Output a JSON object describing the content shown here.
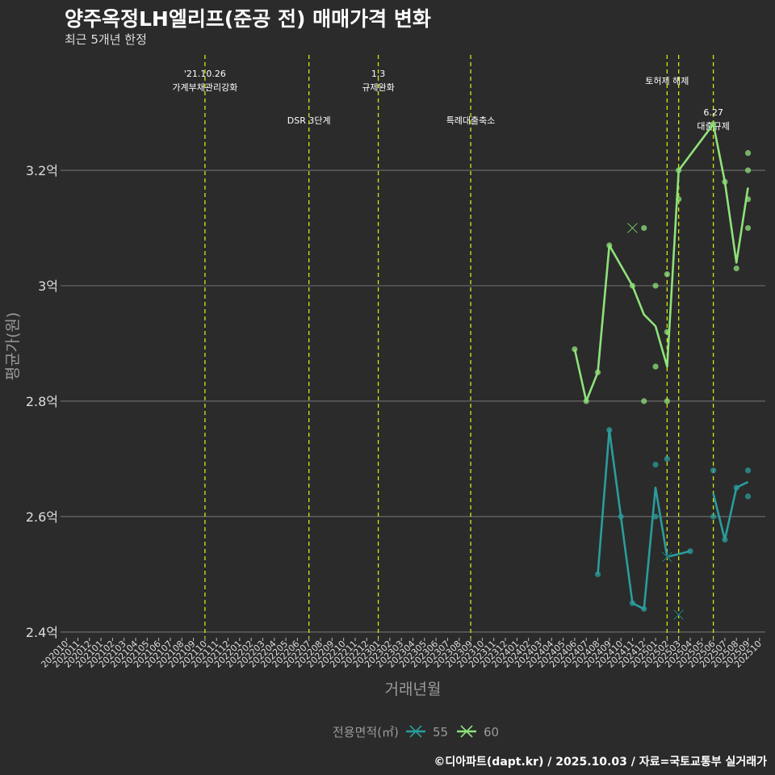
{
  "header": {
    "title": "양주옥정LH엘리프(준공 전) 매매가격 변화",
    "subtitle": "최근 5개년 한정"
  },
  "footer": {
    "caption": "©디아파트(dapt.kr) / 2025.10.03 / 자료=국토교통부 실거래가"
  },
  "colors": {
    "background": "#2b2b2b",
    "grid": "#6a6a6a",
    "event_line": "#d4e41a",
    "series_55": "#2a9d9c",
    "series_60": "#8fe27a",
    "text": "#dddddd",
    "axis_title": "#9a9a9a"
  },
  "chart_data": {
    "type": "line",
    "xlabel": "거래년월",
    "ylabel": "평균가(원)",
    "ylim": [
      2.39,
      3.4
    ],
    "yticks": [
      {
        "value": 2.4,
        "label": "2.4억"
      },
      {
        "value": 2.6,
        "label": "2.6억"
      },
      {
        "value": 2.8,
        "label": "2.8억"
      },
      {
        "value": 3.0,
        "label": "3억"
      },
      {
        "value": 3.2,
        "label": "3.2억"
      }
    ],
    "x_categories": [
      "202010",
      "202011",
      "202012",
      "202101",
      "202102",
      "202103",
      "202104",
      "202105",
      "202106",
      "202107",
      "202108",
      "202109",
      "202110",
      "202111",
      "202112",
      "202201",
      "202202",
      "202203",
      "202204",
      "202205",
      "202206",
      "202207",
      "202208",
      "202209",
      "202210",
      "202211",
      "202212",
      "202301",
      "202302",
      "202303",
      "202304",
      "202305",
      "202306",
      "202307",
      "202308",
      "202309",
      "202310",
      "202311",
      "202312",
      "202401",
      "202402",
      "202403",
      "202404",
      "202405",
      "202406",
      "202407",
      "202408",
      "202409",
      "202410",
      "202411",
      "202412",
      "202501",
      "202502",
      "202503",
      "202504",
      "202505",
      "202506",
      "202507",
      "202508",
      "202509",
      "202510"
    ],
    "legend": {
      "title": "전용면적(㎡)",
      "position": "bottom",
      "entries": [
        "55",
        "60"
      ]
    },
    "events": [
      {
        "x": "202110",
        "label_line1": "'21.10.26",
        "label_line2": "가계부채관리강화",
        "tier": 1
      },
      {
        "x": "202207",
        "label_line1": "",
        "label_line2": "DSR 3단계",
        "tier": 2
      },
      {
        "x": "202301",
        "label_line1": "1.3",
        "label_line2": "규제완화",
        "tier": 1
      },
      {
        "x": "202309",
        "label_line1": "",
        "label_line2": "특례대출축소",
        "tier": 2
      },
      {
        "x": "202502",
        "label_line1": "",
        "label_line2": "토허제 해제",
        "tier": 0
      },
      {
        "x": "202503",
        "label_line1": "",
        "label_line2": "",
        "tier": 0
      },
      {
        "x": "202506",
        "label_line1": "6.27",
        "label_line2": "대출규제",
        "tier": 3
      }
    ],
    "series": [
      {
        "name": "55",
        "line": [
          {
            "x": "202408",
            "y": 2.5
          },
          {
            "x": "202409",
            "y": 2.75
          },
          {
            "x": "202410",
            "y": 2.6
          },
          {
            "x": "202411",
            "y": 2.45
          },
          {
            "x": "202412",
            "y": 2.44
          },
          {
            "x": "202501",
            "y": 2.65
          },
          {
            "x": "202502",
            "y": 2.53
          },
          {
            "x": "202504",
            "y": 2.54
          },
          {
            "x": null,
            "y": null
          },
          {
            "x": "202506",
            "y": 2.64
          },
          {
            "x": "202507",
            "y": 2.56
          },
          {
            "x": "202508",
            "y": 2.65
          },
          {
            "x": "202509",
            "y": 2.66
          }
        ],
        "points": [
          {
            "x": "202408",
            "y": 2.5
          },
          {
            "x": "202409",
            "y": 2.75
          },
          {
            "x": "202410",
            "y": 2.6
          },
          {
            "x": "202411",
            "y": 2.45
          },
          {
            "x": "202412",
            "y": 2.44
          },
          {
            "x": "202501",
            "y": 2.69
          },
          {
            "x": "202501",
            "y": 2.6
          },
          {
            "x": "202502",
            "y": 2.7
          },
          {
            "x": "202504",
            "y": 2.54
          },
          {
            "x": "202506",
            "y": 2.68
          },
          {
            "x": "202506",
            "y": 2.6
          },
          {
            "x": "202507",
            "y": 2.56
          },
          {
            "x": "202508",
            "y": 2.65
          },
          {
            "x": "202509",
            "y": 2.68
          },
          {
            "x": "202509",
            "y": 2.635
          }
        ],
        "cancelled": [
          {
            "x": "202502",
            "y": 2.53
          },
          {
            "x": "202503",
            "y": 2.43
          }
        ]
      },
      {
        "name": "60",
        "line": [
          {
            "x": "202406",
            "y": 2.89
          },
          {
            "x": "202407",
            "y": 2.8
          },
          {
            "x": "202408",
            "y": 2.85
          },
          {
            "x": "202409",
            "y": 3.07
          },
          {
            "x": "202411",
            "y": 3.0
          },
          {
            "x": "202412",
            "y": 2.95
          },
          {
            "x": "202501",
            "y": 2.93
          },
          {
            "x": "202502",
            "y": 2.86
          },
          {
            "x": "202503",
            "y": 3.2
          },
          {
            "x": "202506",
            "y": 3.28
          },
          {
            "x": "202507",
            "y": 3.18
          },
          {
            "x": "202508",
            "y": 3.04
          },
          {
            "x": "202509",
            "y": 3.17
          }
        ],
        "points": [
          {
            "x": "202406",
            "y": 2.89
          },
          {
            "x": "202407",
            "y": 2.8
          },
          {
            "x": "202408",
            "y": 2.85
          },
          {
            "x": "202409",
            "y": 3.07
          },
          {
            "x": "202411",
            "y": 3.0
          },
          {
            "x": "202412",
            "y": 3.1
          },
          {
            "x": "202412",
            "y": 2.8
          },
          {
            "x": "202501",
            "y": 3.0
          },
          {
            "x": "202501",
            "y": 2.86
          },
          {
            "x": "202502",
            "y": 3.02
          },
          {
            "x": "202502",
            "y": 2.92
          },
          {
            "x": "202502",
            "y": 2.8
          },
          {
            "x": "202503",
            "y": 3.2
          },
          {
            "x": "202503",
            "y": 3.15
          },
          {
            "x": "202506",
            "y": 3.28
          },
          {
            "x": "202507",
            "y": 3.18
          },
          {
            "x": "202508",
            "y": 3.03
          },
          {
            "x": "202509",
            "y": 3.23
          },
          {
            "x": "202509",
            "y": 3.2
          },
          {
            "x": "202509",
            "y": 3.15
          },
          {
            "x": "202509",
            "y": 3.1
          }
        ],
        "cancelled": [
          {
            "x": "202411",
            "y": 3.1
          }
        ]
      }
    ]
  }
}
